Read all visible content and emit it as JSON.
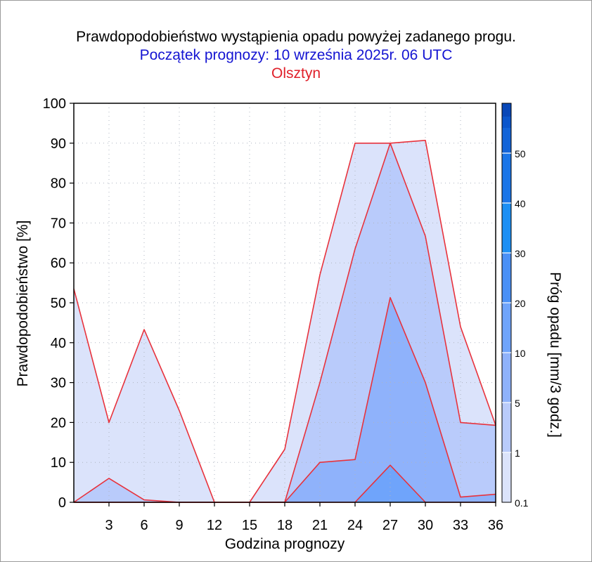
{
  "titles": {
    "title": "Prawdopodobieństwo wystąpienia opadu powyżej zadanego progu.",
    "subtitle": "Początek prognozy: 10 września 2025r. 06 UTC",
    "location": "Olsztyn"
  },
  "colors": {
    "title": "#000000",
    "subtitle": "#1414d2",
    "location": "#e0202a",
    "outline": "#e8323c",
    "grid": "#aeb4c0"
  },
  "chart_data": {
    "type": "area",
    "xlabel": "Godzina prognozy",
    "ylabel": "Prawdopodobieństwo [%]",
    "x": [
      0,
      3,
      6,
      9,
      12,
      15,
      18,
      21,
      24,
      27,
      30,
      33,
      36
    ],
    "xticks": [
      "3",
      "6",
      "9",
      "12",
      "15",
      "18",
      "21",
      "24",
      "27",
      "30",
      "33",
      "36"
    ],
    "xlim": [
      0,
      36
    ],
    "ylim": [
      0,
      100
    ],
    "yticks": [
      "0",
      "10",
      "20",
      "30",
      "40",
      "50",
      "60",
      "70",
      "80",
      "90",
      "100"
    ],
    "grid": true,
    "series": [
      {
        "threshold": 0.1,
        "color": "#dbe3fb",
        "values": [
          53.5,
          20,
          43.3,
          23,
          0,
          0,
          13.3,
          57,
          90,
          90,
          90.7,
          44,
          19.3
        ]
      },
      {
        "threshold": 1,
        "color": "#b9cbfb",
        "values": [
          0,
          6,
          0.6,
          0,
          0,
          0,
          0,
          30,
          63.5,
          90,
          66.7,
          20,
          19.3
        ]
      },
      {
        "threshold": 5,
        "color": "#8fb2fb",
        "values": [
          0,
          0,
          0,
          0,
          0,
          0,
          0,
          10,
          10.7,
          51.3,
          30,
          1.3,
          2
        ]
      },
      {
        "threshold": 10,
        "color": "#6fa4fb",
        "values": [
          0,
          0,
          0,
          0,
          0,
          0,
          0,
          0,
          0,
          9.3,
          0,
          0,
          0
        ]
      }
    ],
    "colorbar": {
      "label": "Próg opadu [mm/3 godz.]",
      "ticks": [
        "0.1",
        "1",
        "5",
        "10",
        "20",
        "30",
        "40",
        "50"
      ],
      "colors": [
        "#dbe3fb",
        "#b9cbfb",
        "#8fb2fb",
        "#6fa4fb",
        "#4a90f6",
        "#1c8ff4",
        "#1a75e8",
        "#1364d8",
        "#0b56cc",
        "#0847b8"
      ]
    }
  }
}
